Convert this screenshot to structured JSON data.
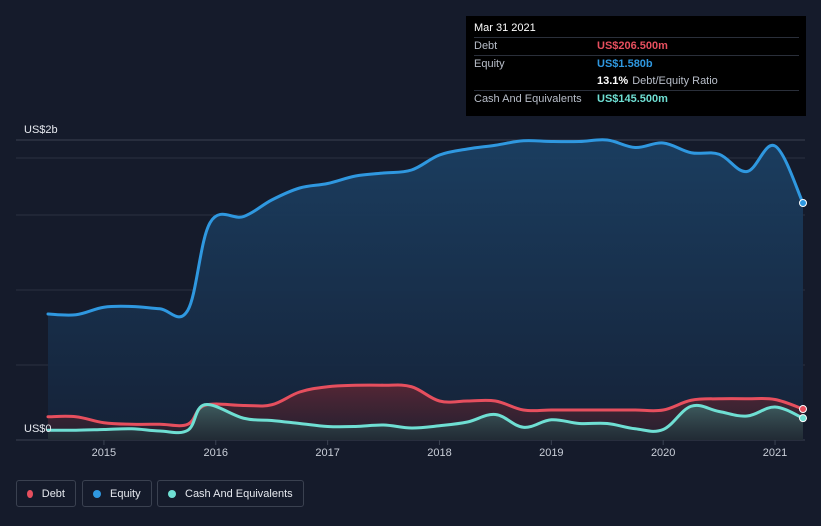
{
  "chart_data": {
    "type": "area",
    "y_axis": {
      "top_label": "US$2b",
      "bottom_label": "US$0",
      "ylim": [
        0,
        2.0
      ],
      "unit": "US$b"
    },
    "x_ticks": [
      "2015",
      "2016",
      "2017",
      "2018",
      "2019",
      "2020",
      "2021"
    ],
    "xlim": [
      2014.5,
      2021.25
    ],
    "series": [
      {
        "name": "Debt",
        "color": "#e64f5e",
        "values": [
          [
            2014.5,
            0.155
          ],
          [
            2014.75,
            0.155
          ],
          [
            2015.0,
            0.115
          ],
          [
            2015.25,
            0.105
          ],
          [
            2015.5,
            0.105
          ],
          [
            2015.75,
            0.105
          ],
          [
            2015.9,
            0.23
          ],
          [
            2016.25,
            0.23
          ],
          [
            2016.5,
            0.235
          ],
          [
            2016.75,
            0.32
          ],
          [
            2017.0,
            0.355
          ],
          [
            2017.25,
            0.365
          ],
          [
            2017.5,
            0.365
          ],
          [
            2017.75,
            0.355
          ],
          [
            2018.0,
            0.26
          ],
          [
            2018.25,
            0.26
          ],
          [
            2018.5,
            0.26
          ],
          [
            2018.75,
            0.2
          ],
          [
            2019.0,
            0.2
          ],
          [
            2019.25,
            0.2
          ],
          [
            2019.5,
            0.2
          ],
          [
            2019.75,
            0.2
          ],
          [
            2020.0,
            0.2
          ],
          [
            2020.25,
            0.265
          ],
          [
            2020.5,
            0.275
          ],
          [
            2020.75,
            0.275
          ],
          [
            2021.0,
            0.27
          ],
          [
            2021.25,
            0.2065
          ]
        ]
      },
      {
        "name": "Equity",
        "color": "#2f98e0",
        "values": [
          [
            2014.5,
            0.84
          ],
          [
            2014.75,
            0.835
          ],
          [
            2015.0,
            0.885
          ],
          [
            2015.25,
            0.89
          ],
          [
            2015.5,
            0.875
          ],
          [
            2015.75,
            0.865
          ],
          [
            2015.95,
            1.45
          ],
          [
            2016.25,
            1.49
          ],
          [
            2016.5,
            1.6
          ],
          [
            2016.75,
            1.68
          ],
          [
            2017.0,
            1.71
          ],
          [
            2017.25,
            1.76
          ],
          [
            2017.5,
            1.78
          ],
          [
            2017.75,
            1.8
          ],
          [
            2018.0,
            1.9
          ],
          [
            2018.25,
            1.94
          ],
          [
            2018.5,
            1.965
          ],
          [
            2018.75,
            1.995
          ],
          [
            2019.0,
            1.99
          ],
          [
            2019.25,
            1.99
          ],
          [
            2019.5,
            2.0
          ],
          [
            2019.75,
            1.95
          ],
          [
            2020.0,
            1.98
          ],
          [
            2020.25,
            1.915
          ],
          [
            2020.5,
            1.905
          ],
          [
            2020.75,
            1.79
          ],
          [
            2021.0,
            1.96
          ],
          [
            2021.25,
            1.58
          ]
        ]
      },
      {
        "name": "Cash And Equivalents",
        "color": "#6fdfd3",
        "values": [
          [
            2014.5,
            0.065
          ],
          [
            2014.75,
            0.065
          ],
          [
            2015.0,
            0.07
          ],
          [
            2015.25,
            0.075
          ],
          [
            2015.5,
            0.06
          ],
          [
            2015.75,
            0.065
          ],
          [
            2015.9,
            0.235
          ],
          [
            2016.25,
            0.145
          ],
          [
            2016.5,
            0.13
          ],
          [
            2016.75,
            0.11
          ],
          [
            2017.0,
            0.09
          ],
          [
            2017.25,
            0.09
          ],
          [
            2017.5,
            0.1
          ],
          [
            2017.75,
            0.08
          ],
          [
            2018.0,
            0.095
          ],
          [
            2018.25,
            0.12
          ],
          [
            2018.5,
            0.17
          ],
          [
            2018.75,
            0.085
          ],
          [
            2019.0,
            0.135
          ],
          [
            2019.25,
            0.11
          ],
          [
            2019.5,
            0.11
          ],
          [
            2019.75,
            0.075
          ],
          [
            2020.0,
            0.07
          ],
          [
            2020.25,
            0.225
          ],
          [
            2020.5,
            0.19
          ],
          [
            2020.75,
            0.16
          ],
          [
            2021.0,
            0.22
          ],
          [
            2021.25,
            0.1455
          ]
        ]
      }
    ],
    "legend_position": "bottom-left",
    "grid": true
  },
  "tooltip": {
    "date": "Mar 31 2021",
    "rows": [
      {
        "label": "Debt",
        "value": "US$206.500m",
        "color": "#e64f5e"
      },
      {
        "label": "Equity",
        "value": "US$1.580b",
        "color": "#2f98e0"
      }
    ],
    "ratio_value": "13.1%",
    "ratio_label": "Debt/Equity Ratio",
    "cash": {
      "label": "Cash And Equivalents",
      "value": "US$145.500m",
      "color": "#6fdfd3"
    }
  },
  "legend": [
    {
      "label": "Debt",
      "color": "#e64f5e"
    },
    {
      "label": "Equity",
      "color": "#2f98e0"
    },
    {
      "label": "Cash And Equivalents",
      "color": "#6fdfd3"
    }
  ]
}
